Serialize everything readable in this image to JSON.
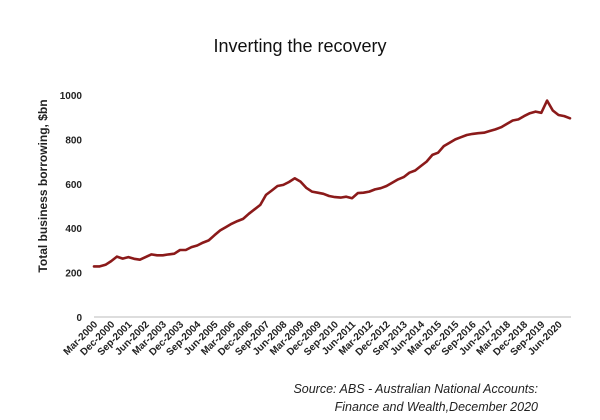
{
  "chart_data": {
    "type": "line",
    "title": "Inverting the recovery",
    "ylabel": "Total business borrowing, $bn",
    "xlabel": "",
    "ylim": [
      0,
      1000
    ],
    "yticks": [
      0,
      200,
      400,
      600,
      800,
      1000
    ],
    "grid": false,
    "legend": "none",
    "series_color": "#8b1a1a",
    "xtick_labels": [
      "Mar-2000",
      "Dec-2000",
      "Sep-2001",
      "Jun-2002",
      "Mar-2003",
      "Dec-2003",
      "Sep-2004",
      "Jun-2005",
      "Mar-2006",
      "Dec-2006",
      "Sep-2007",
      "Jun-2008",
      "Mar-2009",
      "Dec-2009",
      "Sep-2010",
      "Jun-2011",
      "Mar-2012",
      "Dec-2012",
      "Sep-2013",
      "Jun-2014",
      "Mar-2015",
      "Dec-2015",
      "Sep-2016",
      "Jun-2017",
      "Mar-2018",
      "Dec-2018",
      "Sep-2019",
      "Jun-2020"
    ],
    "x": [
      "Mar-2000",
      "Jun-2000",
      "Sep-2000",
      "Dec-2000",
      "Mar-2001",
      "Jun-2001",
      "Sep-2001",
      "Dec-2001",
      "Mar-2002",
      "Jun-2002",
      "Sep-2002",
      "Dec-2002",
      "Mar-2003",
      "Jun-2003",
      "Sep-2003",
      "Dec-2003",
      "Mar-2004",
      "Jun-2004",
      "Sep-2004",
      "Dec-2004",
      "Mar-2005",
      "Jun-2005",
      "Sep-2005",
      "Dec-2005",
      "Mar-2006",
      "Jun-2006",
      "Sep-2006",
      "Dec-2006",
      "Mar-2007",
      "Jun-2007",
      "Sep-2007",
      "Dec-2007",
      "Mar-2008",
      "Jun-2008",
      "Sep-2008",
      "Dec-2008",
      "Mar-2009",
      "Jun-2009",
      "Sep-2009",
      "Dec-2009",
      "Mar-2010",
      "Jun-2010",
      "Sep-2010",
      "Dec-2010",
      "Mar-2011",
      "Jun-2011",
      "Sep-2011",
      "Dec-2011",
      "Mar-2012",
      "Jun-2012",
      "Sep-2012",
      "Dec-2012",
      "Mar-2013",
      "Jun-2013",
      "Sep-2013",
      "Dec-2013",
      "Mar-2014",
      "Jun-2014",
      "Sep-2014",
      "Dec-2014",
      "Mar-2015",
      "Jun-2015",
      "Sep-2015",
      "Dec-2015",
      "Mar-2016",
      "Jun-2016",
      "Sep-2016",
      "Dec-2016",
      "Mar-2017",
      "Jun-2017",
      "Sep-2017",
      "Dec-2017",
      "Mar-2018",
      "Jun-2018",
      "Sep-2018",
      "Dec-2018",
      "Mar-2019",
      "Jun-2019",
      "Sep-2019",
      "Dec-2019",
      "Mar-2020",
      "Jun-2020",
      "Sep-2020",
      "Dec-2020"
    ],
    "values": [
      228,
      228,
      235,
      252,
      272,
      263,
      270,
      262,
      258,
      270,
      282,
      278,
      278,
      282,
      285,
      302,
      302,
      315,
      322,
      335,
      345,
      368,
      390,
      405,
      420,
      432,
      442,
      465,
      485,
      505,
      550,
      570,
      590,
      595,
      608,
      625,
      610,
      582,
      565,
      560,
      555,
      545,
      540,
      538,
      542,
      535,
      558,
      560,
      565,
      575,
      580,
      590,
      605,
      620,
      630,
      650,
      660,
      680,
      700,
      730,
      740,
      770,
      785,
      800,
      810,
      820,
      825,
      828,
      830,
      838,
      845,
      855,
      870,
      885,
      890,
      905,
      918,
      925,
      920,
      975,
      930,
      910,
      905,
      895
    ]
  },
  "source_line1": "Source: ABS - Australian National Accounts:",
  "source_line2": "Finance and Wealth,December 2020"
}
